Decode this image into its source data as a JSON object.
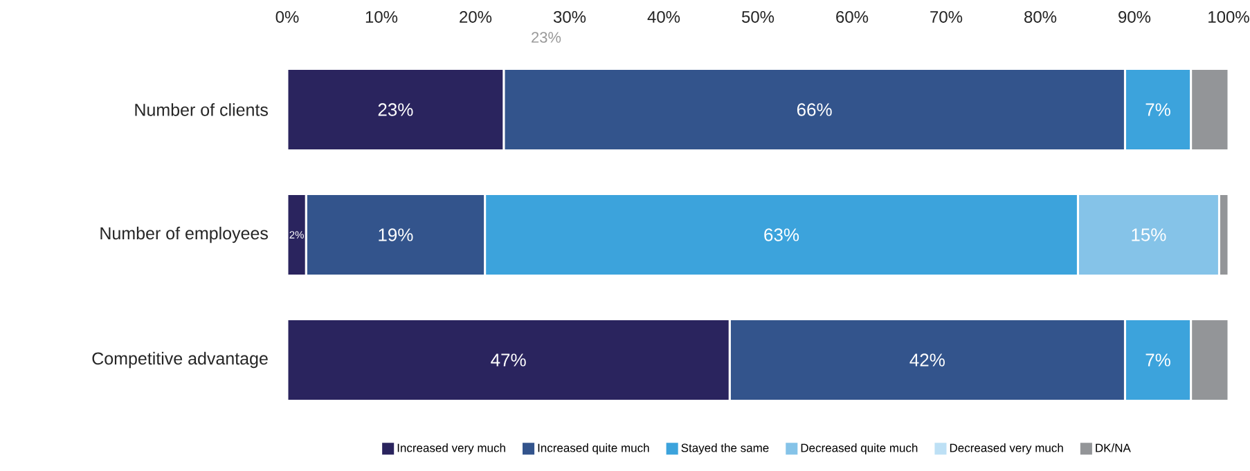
{
  "chart_data": {
    "type": "bar",
    "orientation": "horizontal",
    "stacked": true,
    "categories": [
      "Number of clients",
      "Number of employees",
      "Competitive advantage"
    ],
    "series": [
      {
        "name": "Increased very much",
        "color": "#2a245e",
        "values": [
          23,
          2,
          47
        ],
        "value_labels": [
          "23%",
          "2%",
          "47%"
        ]
      },
      {
        "name": "Increased quite much",
        "color": "#33548c",
        "values": [
          66,
          19,
          42
        ],
        "value_labels": [
          "66%",
          "19%",
          "42%"
        ]
      },
      {
        "name": "Stayed the same",
        "color": "#3ca3dc",
        "values": [
          7,
          63,
          7
        ],
        "value_labels": [
          "7%",
          "63%",
          "7%"
        ]
      },
      {
        "name": "Decreased quite much",
        "color": "#85c3e8",
        "values": [
          0,
          15,
          0
        ],
        "value_labels": [
          null,
          "15%",
          null
        ]
      },
      {
        "name": "Decreased very much",
        "color": "#bde0f5",
        "values": [
          0,
          0,
          0
        ],
        "value_labels": [
          null,
          null,
          null
        ]
      },
      {
        "name": "DK/NA",
        "color": "#939598",
        "values": [
          4,
          1,
          4
        ],
        "value_labels": [
          null,
          null,
          null
        ]
      }
    ],
    "xlim": [
      0,
      100
    ],
    "xticks": [
      {
        "value": 0,
        "label": "0%"
      },
      {
        "value": 10,
        "label": "10%"
      },
      {
        "value": 20,
        "label": "20%"
      },
      {
        "value": 30,
        "label": "30%"
      },
      {
        "value": 40,
        "label": "40%"
      },
      {
        "value": 50,
        "label": "50%"
      },
      {
        "value": 60,
        "label": "60%"
      },
      {
        "value": 70,
        "label": "70%"
      },
      {
        "value": 80,
        "label": "80%"
      },
      {
        "value": 90,
        "label": "90%"
      },
      {
        "value": 100,
        "label": "100%"
      }
    ],
    "legend": "bottom",
    "grid": false,
    "annotations": [
      "23%"
    ]
  }
}
